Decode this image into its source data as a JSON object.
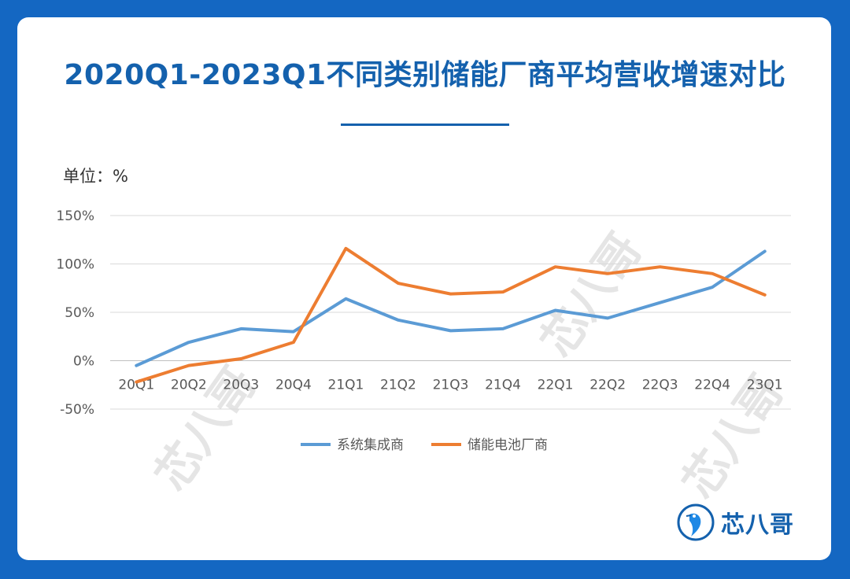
{
  "header": {
    "title": "2020Q1-2023Q1不同类别储能厂商平均营收增速对比",
    "unit": "单位：%"
  },
  "brand": {
    "logo_text": "芯八哥",
    "watermark_text": "芯八哥"
  },
  "colors": {
    "background": "#1467c2",
    "title": "#1461ad",
    "series_system": "#5b9bd5",
    "series_battery": "#ed7d31"
  },
  "chart_data": {
    "type": "line",
    "title": "2020Q1-2023Q1不同类别储能厂商平均营收增速对比",
    "ylabel": "单位：%",
    "xlabel": "",
    "categories": [
      "20Q1",
      "20Q2",
      "20Q3",
      "20Q4",
      "21Q1",
      "21Q2",
      "21Q3",
      "21Q4",
      "22Q1",
      "22Q2",
      "22Q3",
      "22Q4",
      "23Q1"
    ],
    "series": [
      {
        "name": "系统集成商",
        "color": "#5b9bd5",
        "values": [
          -5,
          19,
          33,
          30,
          64,
          42,
          31,
          33,
          52,
          44,
          60,
          76,
          113
        ]
      },
      {
        "name": "储能电池厂商",
        "color": "#ed7d31",
        "values": [
          -22,
          -5,
          2,
          19,
          116,
          80,
          69,
          71,
          97,
          90,
          97,
          90,
          68
        ]
      }
    ],
    "ylim": [
      -50,
      150
    ],
    "yticks": [
      150,
      100,
      50,
      0,
      -50
    ],
    "ytick_labels": [
      "150%",
      "100%",
      "50%",
      "0%",
      "-50%"
    ],
    "grid": true,
    "legend": "bottom"
  }
}
